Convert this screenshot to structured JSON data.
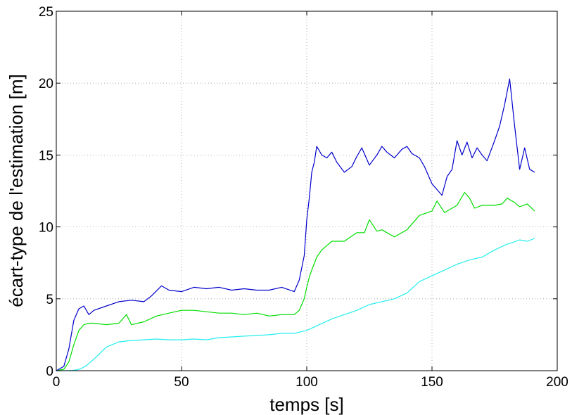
{
  "chart_data": {
    "type": "line",
    "title": "",
    "xlabel": "temps [s]",
    "ylabel": "écart-type de l'estimation [m]",
    "xlim": [
      0,
      200
    ],
    "ylim": [
      0,
      25
    ],
    "xticks": [
      0,
      50,
      100,
      150,
      200
    ],
    "yticks": [
      0,
      5,
      10,
      15,
      20,
      25
    ],
    "grid": true,
    "legend": "none",
    "series": [
      {
        "color": "#0000cc",
        "x": [
          0,
          3,
          5,
          7,
          9,
          11,
          13,
          15,
          20,
          25,
          30,
          35,
          38,
          42,
          45,
          50,
          55,
          60,
          65,
          70,
          75,
          80,
          85,
          90,
          95,
          97,
          99,
          100,
          101,
          102,
          103,
          104,
          106,
          108,
          110,
          112,
          115,
          118,
          120,
          122,
          125,
          128,
          130,
          132,
          135,
          138,
          140,
          142,
          145,
          147,
          150,
          152,
          154,
          156,
          158,
          160,
          162,
          164,
          166,
          168,
          170,
          172,
          175,
          177,
          179,
          181,
          183,
          185,
          187,
          189,
          191
        ],
        "y": [
          0,
          0.3,
          1.5,
          3.5,
          4.3,
          4.5,
          3.9,
          4.2,
          4.5,
          4.8,
          4.9,
          4.8,
          5.2,
          5.9,
          5.6,
          5.5,
          5.8,
          5.7,
          5.8,
          5.6,
          5.7,
          5.6,
          5.6,
          5.8,
          5.5,
          6.3,
          8.0,
          10.5,
          12.0,
          13.8,
          14.5,
          15.6,
          15.0,
          14.8,
          15.2,
          14.5,
          13.8,
          14.2,
          14.9,
          15.5,
          14.3,
          15.0,
          15.6,
          15.2,
          14.8,
          15.4,
          15.6,
          15.1,
          14.8,
          14.2,
          13.0,
          12.6,
          12.2,
          13.5,
          14.0,
          16.0,
          15.0,
          15.9,
          14.8,
          15.5,
          15.0,
          14.6,
          16.0,
          17.0,
          18.5,
          20.3,
          17.0,
          14.0,
          15.5,
          14.0,
          13.8
        ]
      },
      {
        "color": "#00dd00",
        "x": [
          0,
          3,
          5,
          7,
          9,
          11,
          13,
          15,
          20,
          25,
          28,
          30,
          35,
          40,
          45,
          50,
          55,
          60,
          65,
          70,
          75,
          80,
          85,
          90,
          95,
          97,
          99,
          100,
          101,
          102,
          104,
          106,
          108,
          110,
          115,
          120,
          123,
          125,
          128,
          130,
          135,
          140,
          145,
          150,
          152,
          155,
          158,
          160,
          163,
          165,
          167,
          170,
          175,
          178,
          180,
          183,
          185,
          188,
          191
        ],
        "y": [
          0,
          0.1,
          0.6,
          1.8,
          2.8,
          3.2,
          3.3,
          3.3,
          3.2,
          3.3,
          3.9,
          3.2,
          3.4,
          3.8,
          4.0,
          4.2,
          4.2,
          4.1,
          4.0,
          4.0,
          3.9,
          4.0,
          3.8,
          3.9,
          3.9,
          4.2,
          5.0,
          5.8,
          6.5,
          7.0,
          7.9,
          8.4,
          8.7,
          9.0,
          9.0,
          9.6,
          9.6,
          10.5,
          9.7,
          9.8,
          9.3,
          9.8,
          10.8,
          11.1,
          11.8,
          11.0,
          11.3,
          11.5,
          12.4,
          12.0,
          11.3,
          11.5,
          11.5,
          11.6,
          12.0,
          11.7,
          11.4,
          11.6,
          11.1
        ]
      },
      {
        "color": "#22eeee",
        "x": [
          0,
          5,
          8,
          10,
          12,
          15,
          18,
          20,
          25,
          30,
          35,
          40,
          45,
          50,
          55,
          60,
          65,
          70,
          75,
          80,
          85,
          90,
          95,
          100,
          105,
          110,
          115,
          120,
          125,
          130,
          135,
          140,
          145,
          150,
          155,
          160,
          165,
          170,
          175,
          180,
          182,
          185,
          188,
          191
        ],
        "y": [
          0,
          0,
          0.05,
          0.15,
          0.35,
          0.8,
          1.3,
          1.65,
          2.0,
          2.1,
          2.15,
          2.2,
          2.15,
          2.15,
          2.2,
          2.15,
          2.3,
          2.35,
          2.4,
          2.45,
          2.5,
          2.6,
          2.6,
          2.8,
          3.2,
          3.6,
          3.9,
          4.2,
          4.6,
          4.8,
          5.0,
          5.4,
          6.2,
          6.6,
          7.0,
          7.4,
          7.7,
          7.9,
          8.4,
          8.8,
          8.9,
          9.1,
          9.0,
          9.2
        ]
      }
    ]
  }
}
